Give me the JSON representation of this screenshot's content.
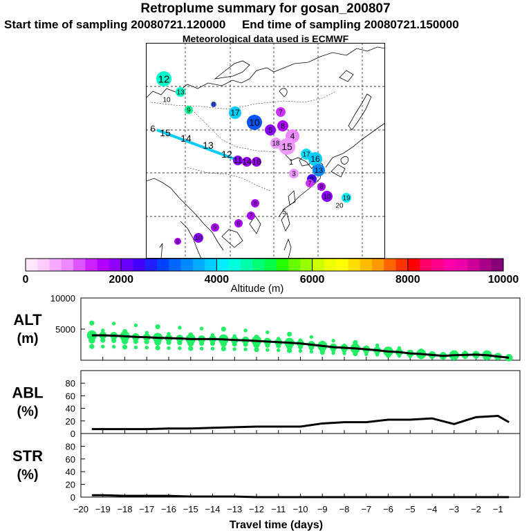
{
  "title": "Retroplume summary for gosan_200807",
  "start_label": "Start time of sampling 20080721.120000",
  "end_label": "End time of sampling 20080721.150000",
  "met_label": "Meteorological data used is ECMWF",
  "colorbar": {
    "label": "Altitude (m)",
    "ticks": [
      "0",
      "2000",
      "4000",
      "6000",
      "8000",
      "10000"
    ],
    "colors": [
      "#ffe6ff",
      "#ffccff",
      "#f5a8ff",
      "#ee88ff",
      "#dd55ff",
      "#cc22ff",
      "#b400ff",
      "#8f00ff",
      "#6a00ff",
      "#4400ff",
      "#2020ff",
      "#0040ff",
      "#0066ff",
      "#0088ff",
      "#00aaff",
      "#00ccff",
      "#00eeff",
      "#00ffdd",
      "#00ffaa",
      "#00ff77",
      "#00ff44",
      "#22ff00",
      "#66ff00",
      "#99ff00",
      "#ccff00",
      "#eeff00",
      "#ffff00",
      "#ffdd00",
      "#ffbb00",
      "#ff9900",
      "#ff6600",
      "#ff3300",
      "#ff0000",
      "#ff0066",
      "#ff0088",
      "#ff00aa",
      "#ee00aa",
      "#cc0099",
      "#aa0088",
      "#880077"
    ]
  },
  "map_labels": [
    {
      "t": "12",
      "c": "#00ffcc"
    },
    {
      "t": "13",
      "c": "#00ffcc"
    },
    {
      "t": "10",
      "c": "#33ff88"
    },
    {
      "t": "9",
      "c": "#00ff99"
    },
    {
      "t": "8",
      "c": "#3366ff"
    },
    {
      "t": "17",
      "c": "#00ccff"
    },
    {
      "t": "10",
      "c": "#0055ff"
    },
    {
      "t": "6",
      "c": "#00ccff"
    },
    {
      "t": "15",
      "c": "#00ccff"
    },
    {
      "t": "14",
      "c": "#00ccff"
    },
    {
      "t": "13",
      "c": "#00ccff"
    },
    {
      "t": "12",
      "c": "#00ccff"
    },
    {
      "t": "11",
      "c": "#8800ff"
    },
    {
      "t": "14",
      "c": "#9900ff"
    },
    {
      "t": "16",
      "c": "#9900ff"
    },
    {
      "t": "5",
      "c": "#8800ff"
    },
    {
      "t": "8",
      "c": "#aa00ff"
    },
    {
      "t": "7",
      "c": "#cc33ff"
    },
    {
      "t": "4",
      "c": "#ee88ff"
    },
    {
      "t": "15",
      "c": "#ee99ff"
    },
    {
      "t": "18",
      "c": "#ee99ff"
    },
    {
      "t": "1",
      "c": "#ffffff"
    },
    {
      "t": "3",
      "c": "#ee99ff"
    },
    {
      "t": "17",
      "c": "#00ddff"
    },
    {
      "t": "16",
      "c": "#00ccff"
    },
    {
      "t": "13",
      "c": "#0088ff"
    },
    {
      "t": "9",
      "c": "#4400ff"
    },
    {
      "t": "7",
      "c": "#cc33ff"
    },
    {
      "t": "8",
      "c": "#aa00ff"
    },
    {
      "t": "10",
      "c": "#8800ff"
    },
    {
      "t": "19",
      "c": "#00eeff"
    },
    {
      "t": "20",
      "c": "#00eeff"
    },
    {
      "t": "5",
      "c": "#ffffff"
    },
    {
      "t": "8",
      "c": "#aa00ff"
    },
    {
      "t": "7",
      "c": "#aa00ff"
    },
    {
      "t": "6",
      "c": "#aa00ff"
    },
    {
      "t": "9",
      "c": "#aa00ff"
    },
    {
      "t": "10",
      "c": "#8800ff"
    },
    {
      "t": "8",
      "c": "#aa00ff"
    }
  ],
  "chart_data": [
    {
      "type": "line",
      "panel": "ALT",
      "ylabel_line1": "ALT",
      "ylabel_line2": "(m)",
      "ylim": [
        0,
        10000
      ],
      "yticks": [
        5000,
        10000
      ],
      "x": [
        -19.5,
        -19,
        -18.5,
        -18,
        -17.5,
        -17,
        -16.5,
        -16,
        -15.5,
        -15,
        -14.5,
        -14,
        -13.5,
        -13,
        -12.5,
        -12,
        -11.5,
        -11,
        -10.5,
        -10,
        -9.5,
        -9,
        -8.5,
        -8,
        -7.5,
        -7,
        -6.5,
        -6,
        -5.5,
        -5,
        -4.5,
        -4,
        -3.5,
        -3,
        -2.5,
        -2,
        -1.5,
        -1,
        -0.5
      ],
      "median": [
        4000,
        4000,
        3950,
        3850,
        3750,
        3700,
        3600,
        3550,
        3500,
        3400,
        3400,
        3400,
        3350,
        3250,
        3200,
        3100,
        3000,
        2900,
        2800,
        2700,
        2500,
        2300,
        2100,
        2000,
        1900,
        1750,
        1600,
        1400,
        1300,
        1100,
        1000,
        850,
        700,
        800,
        850,
        900,
        800,
        600,
        400
      ],
      "spread_color": "#22ee66"
    },
    {
      "type": "line",
      "panel": "ABL",
      "ylabel_line1": "ABL",
      "ylabel_line2": "(%)",
      "ylim": [
        0,
        100
      ],
      "yticks": [
        0,
        20,
        40,
        60,
        80
      ],
      "x": [
        -19.5,
        -18,
        -17,
        -16,
        -15,
        -14,
        -13,
        -12,
        -11,
        -10,
        -9,
        -8,
        -7,
        -6,
        -5,
        -4,
        -3,
        -2,
        -1,
        -0.5
      ],
      "values": [
        7,
        7,
        7,
        8,
        8,
        9,
        10,
        11,
        11,
        11,
        16,
        18,
        18,
        22,
        22,
        24,
        15,
        26,
        28,
        18
      ]
    },
    {
      "type": "line",
      "panel": "STR",
      "ylabel_line1": "STR",
      "ylabel_line2": "(%)",
      "ylim": [
        0,
        100
      ],
      "yticks": [
        0,
        20,
        40,
        60,
        80
      ],
      "x": [
        -19.5,
        -19,
        -18,
        -17,
        -16,
        -15,
        -14,
        -13,
        -12,
        -11,
        -10,
        -9,
        -8,
        -7,
        -6,
        -5,
        -4,
        -3,
        -2,
        -1,
        -0.5
      ],
      "values": [
        3,
        3,
        2,
        2,
        2,
        1,
        1,
        1,
        0,
        0,
        0,
        0,
        0,
        0,
        0,
        0,
        0,
        0,
        0,
        0,
        0
      ],
      "xlabel": "Travel time (days)",
      "xlim": [
        -20,
        0
      ],
      "xticks": [
        -20,
        -19,
        -18,
        -17,
        -16,
        -15,
        -14,
        -13,
        -12,
        -11,
        -10,
        -9,
        -8,
        -7,
        -6,
        -5,
        -4,
        -3,
        -2,
        -1
      ]
    }
  ]
}
